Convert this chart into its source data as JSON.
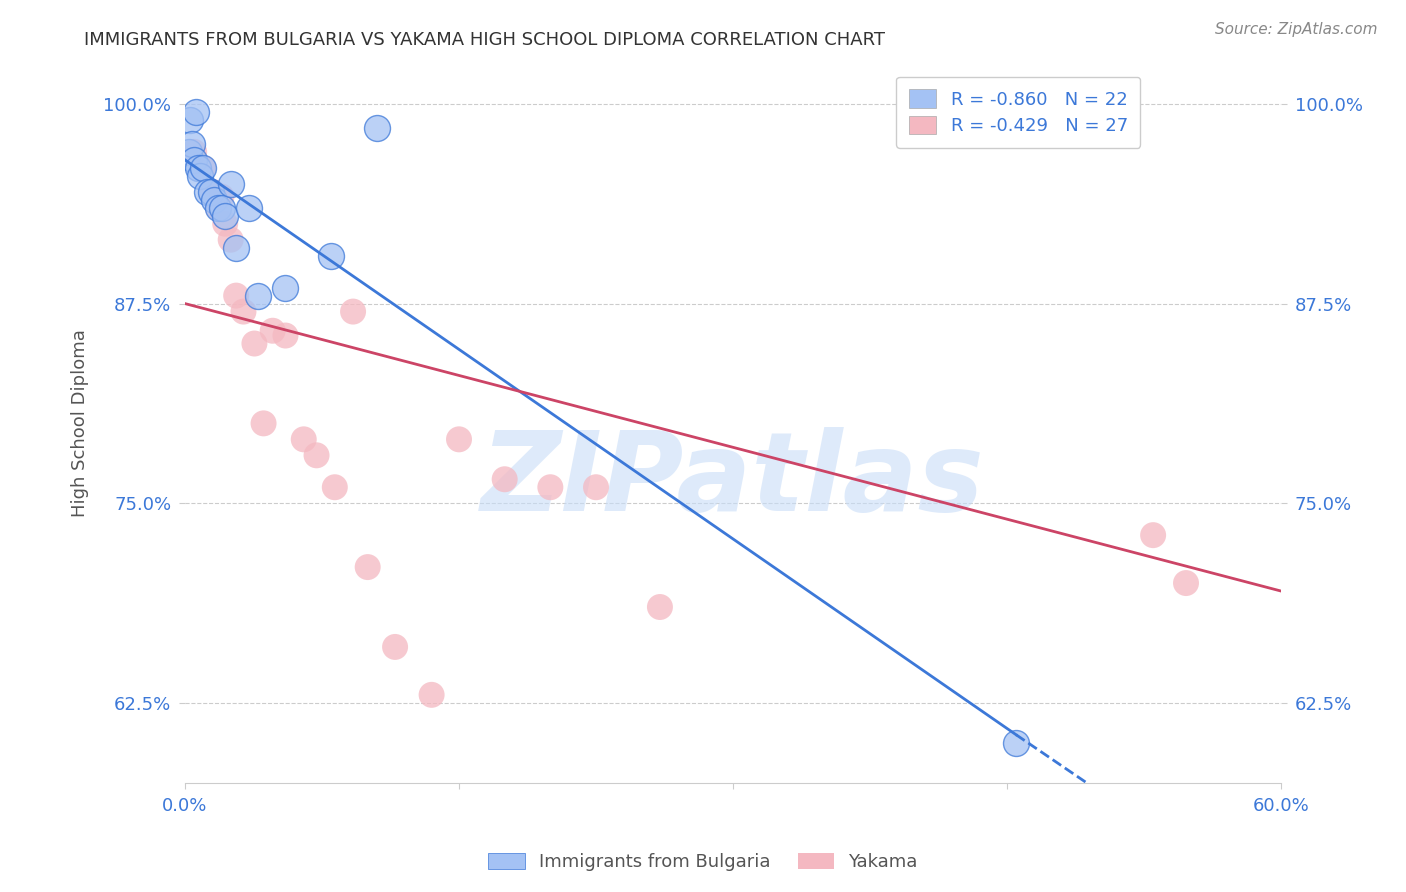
{
  "title": "IMMIGRANTS FROM BULGARIA VS YAKAMA HIGH SCHOOL DIPLOMA CORRELATION CHART",
  "source": "Source: ZipAtlas.com",
  "xlabel": "",
  "ylabel": "High School Diploma",
  "xmin": 0.0,
  "xmax": 0.6,
  "ymin": 0.575,
  "ymax": 1.025,
  "yticks": [
    0.625,
    0.75,
    0.875,
    1.0
  ],
  "ytick_labels": [
    "62.5%",
    "75.0%",
    "87.5%",
    "100.0%"
  ],
  "xticks": [
    0.0,
    0.15,
    0.3,
    0.45,
    0.6
  ],
  "xtick_labels": [
    "0.0%",
    "",
    "",
    "",
    "60.0%"
  ],
  "legend_blue_r": "R = -0.860",
  "legend_blue_n": "N = 22",
  "legend_pink_r": "R = -0.429",
  "legend_pink_n": "N = 27",
  "blue_color": "#a4c2f4",
  "pink_color": "#f4b8c1",
  "blue_line_color": "#3c78d8",
  "pink_line_color": "#cc4466",
  "background_color": "#ffffff",
  "blue_points_x": [
    0.003,
    0.006,
    0.002,
    0.004,
    0.005,
    0.007,
    0.008,
    0.01,
    0.012,
    0.014,
    0.016,
    0.018,
    0.02,
    0.022,
    0.025,
    0.028,
    0.035,
    0.04,
    0.055,
    0.08,
    0.105,
    0.455
  ],
  "blue_points_y": [
    0.99,
    0.995,
    0.97,
    0.975,
    0.965,
    0.96,
    0.955,
    0.96,
    0.945,
    0.945,
    0.94,
    0.935,
    0.935,
    0.93,
    0.95,
    0.91,
    0.935,
    0.88,
    0.885,
    0.905,
    0.985,
    0.6
  ],
  "pink_points_x": [
    0.005,
    0.01,
    0.015,
    0.018,
    0.02,
    0.022,
    0.025,
    0.028,
    0.032,
    0.038,
    0.043,
    0.048,
    0.055,
    0.065,
    0.072,
    0.082,
    0.092,
    0.1,
    0.115,
    0.135,
    0.15,
    0.175,
    0.2,
    0.225,
    0.26,
    0.53,
    0.548
  ],
  "pink_points_y": [
    0.97,
    0.96,
    0.945,
    0.935,
    0.942,
    0.925,
    0.915,
    0.88,
    0.87,
    0.85,
    0.8,
    0.858,
    0.855,
    0.79,
    0.78,
    0.76,
    0.87,
    0.71,
    0.66,
    0.63,
    0.79,
    0.765,
    0.76,
    0.76,
    0.685,
    0.73,
    0.7
  ],
  "blue_trend_x0": 0.0,
  "blue_trend_y0": 0.965,
  "blue_trend_x1": 0.455,
  "blue_trend_y1": 0.605,
  "blue_trend_xdash": 0.6,
  "blue_trend_ydash": 0.492,
  "pink_trend_x0": 0.0,
  "pink_trend_y0": 0.875,
  "pink_trend_x1": 0.6,
  "pink_trend_y1": 0.695,
  "watermark": "ZIPatlas",
  "watermark_color": "#c8ddf8",
  "watermark_alpha": 0.6
}
